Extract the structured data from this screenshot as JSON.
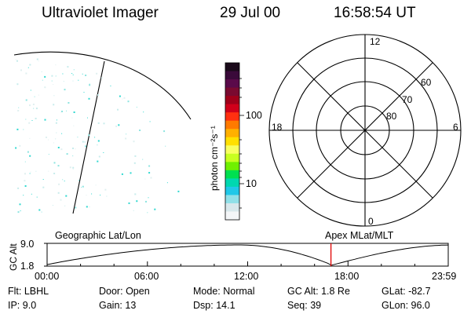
{
  "header": {
    "instrument": "Ultraviolet Imager",
    "date": "29 Jul 00",
    "time": "16:58:54 UT"
  },
  "colorbar": {
    "unit_label": "photon cm⁻²s⁻¹",
    "ticks": [
      "100",
      "10"
    ],
    "colors": [
      "#1a0a1a",
      "#3a0a3a",
      "#5a0a4a",
      "#7a0a30",
      "#a0001a",
      "#d0001a",
      "#ff3010",
      "#ff7a00",
      "#ffb000",
      "#ffe000",
      "#f8ff60",
      "#c8ff20",
      "#70f000",
      "#00e050",
      "#00d8b0",
      "#20c8e8",
      "#90e0e8",
      "#d8e8ec",
      "#f4f6f8"
    ]
  },
  "polar_plot": {
    "ring_labels": [
      "80",
      "70",
      "60"
    ],
    "clock_labels": {
      "top": "12",
      "left": "18",
      "right": "6",
      "bottom": "0"
    }
  },
  "timeline": {
    "ylabel": "GC Alt",
    "y_ticks": [
      "9.0",
      "1.8"
    ],
    "left_caption": "Geographic Lat/Lon",
    "right_caption": "Apex MLat/MLT",
    "x_ticks": [
      "00:00",
      "06:00",
      "12:00",
      "18:00",
      "23:59"
    ],
    "marker_time": "16:58:54"
  },
  "status": {
    "row1": [
      {
        "key": "Flt:",
        "value": "LBHL"
      },
      {
        "key": "Door:",
        "value": "Open"
      },
      {
        "key": "Mode:",
        "value": "Normal"
      },
      {
        "key": "GC Alt:",
        "value": "1.8 Re"
      },
      {
        "key": "GLat:",
        "value": "-82.7"
      }
    ],
    "row2": [
      {
        "key": "IP:",
        "value": "9.0"
      },
      {
        "key": "Gain:",
        "value": "13"
      },
      {
        "key": "Dsp:",
        "value": "14.1"
      },
      {
        "key": "Seq:",
        "value": "39"
      },
      {
        "key": "GLon:",
        "value": "96.0"
      }
    ]
  }
}
